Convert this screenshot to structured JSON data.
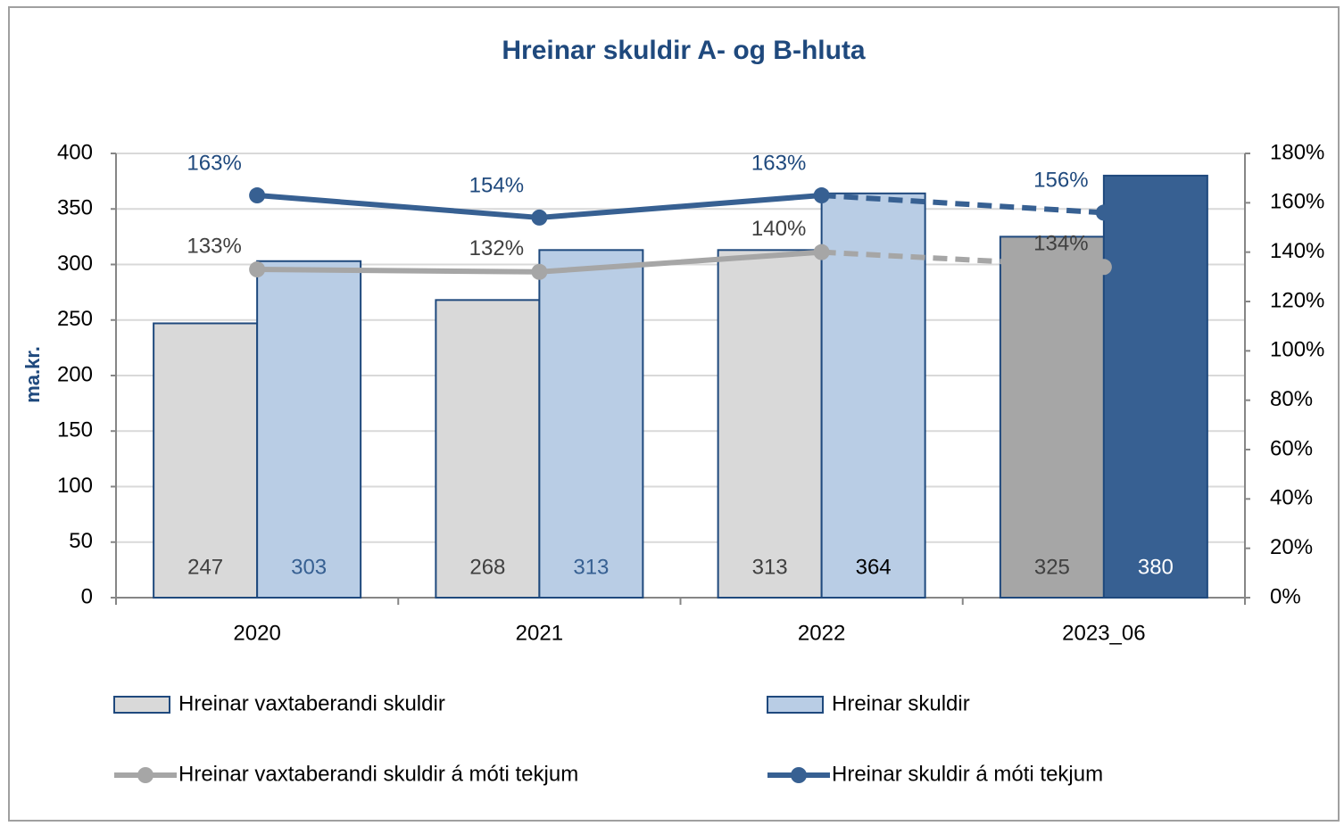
{
  "chart_data": {
    "type": "bar",
    "title": "Hreinar skuldir A- og B-hluta",
    "ylabel": "ma.kr.",
    "categories": [
      "2020",
      "2021",
      "2022",
      "2023_06"
    ],
    "series": [
      {
        "name": "Hreinar vaxtaberandi skuldir",
        "type": "bar",
        "color": "#d9d9d9",
        "colors": [
          "#d9d9d9",
          "#d9d9d9",
          "#d9d9d9",
          "#a6a6a6"
        ],
        "label_colors": [
          "#404040",
          "#404040",
          "#404040",
          "#404040"
        ],
        "values": [
          247,
          268,
          313,
          325
        ]
      },
      {
        "name": "Hreinar skuldir",
        "type": "bar",
        "color": "#b9cde5",
        "colors": [
          "#b9cde5",
          "#b9cde5",
          "#b9cde5",
          "#376092"
        ],
        "label_colors": [
          "#376092",
          "#376092",
          "#000000",
          "#ffffff"
        ],
        "values": [
          303,
          313,
          364,
          380
        ]
      },
      {
        "name": "Hreinar vaxtaberandi skuldir á móti tekjum",
        "type": "line",
        "axis": "y2",
        "color": "#a6a6a6",
        "label_color": "#404040",
        "dashed_from_index": 2,
        "values": [
          133,
          132,
          140,
          134
        ],
        "value_labels": [
          "133%",
          "132%",
          "140%",
          "134%"
        ]
      },
      {
        "name": "Hreinar skuldir á móti tekjum",
        "type": "line",
        "axis": "y2",
        "color": "#376092",
        "label_color": "#1f497d",
        "dashed_from_index": 2,
        "values": [
          163,
          154,
          163,
          156
        ],
        "value_labels": [
          "163%",
          "154%",
          "163%",
          "156%"
        ]
      }
    ],
    "ylim": [
      0,
      400
    ],
    "yticks": [
      0,
      50,
      100,
      150,
      200,
      250,
      300,
      350,
      400
    ],
    "y2lim": [
      0,
      180
    ],
    "y2ticks": [
      {
        "value": 0,
        "label": "0%"
      },
      {
        "value": 20,
        "label": "20%"
      },
      {
        "value": 40,
        "label": "40%"
      },
      {
        "value": 60,
        "label": "60%"
      },
      {
        "value": 80,
        "label": "80%"
      },
      {
        "value": 100,
        "label": "100%"
      },
      {
        "value": 120,
        "label": "120%"
      },
      {
        "value": 140,
        "label": "140%"
      },
      {
        "value": 160,
        "label": "160%"
      },
      {
        "value": 180,
        "label": "180%"
      }
    ],
    "grid": true,
    "legend": "bottom"
  }
}
